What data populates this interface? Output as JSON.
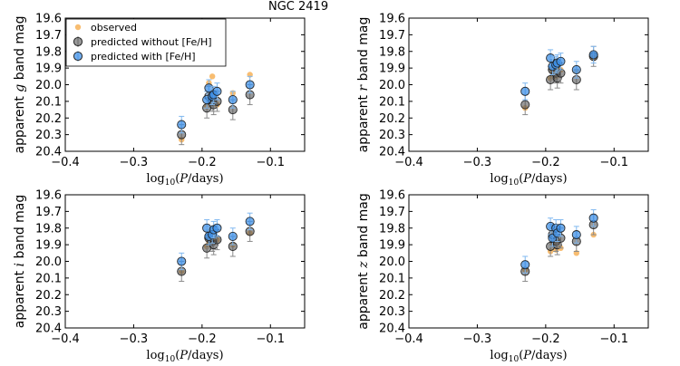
{
  "figure_title": "NGC 2419",
  "legend": {
    "entries": [
      {
        "label": "observed",
        "color": "#f5a742"
      },
      {
        "label": "predicted without [Fe/H]",
        "color": "#555555"
      },
      {
        "label": "predicted with [Fe/H]",
        "color": "#3a8ee6"
      }
    ]
  },
  "colors": {
    "observed": "#f5a742",
    "without": "#555555",
    "without_err": "#8a8a8a",
    "with": "#3a8ee6",
    "with_err": "#80b8f0"
  },
  "chart_data": [
    {
      "type": "scatter",
      "title": "NGC 2419",
      "xlabel": "log10(P/days)",
      "ylabel": "apparent g band mag",
      "ylabel_parts": {
        "pre": "apparent ",
        "band": "g",
        "post": " band mag"
      },
      "xlim": [
        -0.4,
        -0.05
      ],
      "ylim": [
        20.4,
        19.6
      ],
      "xticks": [
        -0.4,
        -0.3,
        -0.2,
        -0.1
      ],
      "xtick_labels": [
        "−0.4",
        "−0.3",
        "−0.2",
        "−0.1"
      ],
      "yticks": [
        19.6,
        19.7,
        19.8,
        19.9,
        20.0,
        20.1,
        20.2,
        20.3,
        20.4
      ],
      "ytick_labels": [
        "19.6",
        "19.7",
        "19.8",
        "19.9",
        "20.0",
        "20.1",
        "20.2",
        "20.3",
        "20.4"
      ],
      "legend": true,
      "series": [
        {
          "name": "observed",
          "x": [
            -0.23,
            -0.193,
            -0.19,
            -0.185,
            -0.183,
            -0.178,
            -0.155,
            -0.13
          ],
          "y": [
            20.33,
            20.13,
            19.99,
            19.95,
            20.08,
            20.12,
            20.05,
            19.94
          ]
        },
        {
          "name": "predicted without [Fe/H]",
          "x": [
            -0.23,
            -0.193,
            -0.19,
            -0.185,
            -0.183,
            -0.178,
            -0.155,
            -0.13
          ],
          "y": [
            20.3,
            20.14,
            20.07,
            20.1,
            20.12,
            20.1,
            20.15,
            20.06
          ],
          "err": [
            0.06,
            0.06,
            0.06,
            0.06,
            0.06,
            0.06,
            0.06,
            0.06
          ]
        },
        {
          "name": "predicted with [Fe/H]",
          "x": [
            -0.23,
            -0.193,
            -0.19,
            -0.185,
            -0.183,
            -0.178,
            -0.155,
            -0.13
          ],
          "y": [
            20.24,
            20.09,
            20.02,
            20.07,
            20.06,
            20.04,
            20.09,
            20.0
          ],
          "err": [
            0.05,
            0.05,
            0.05,
            0.05,
            0.05,
            0.05,
            0.05,
            0.05
          ]
        }
      ]
    },
    {
      "type": "scatter",
      "xlabel": "log10(P/days)",
      "ylabel": "apparent r band mag",
      "ylabel_parts": {
        "pre": "apparent ",
        "band": "r",
        "post": " band mag"
      },
      "xlim": [
        -0.4,
        -0.05
      ],
      "ylim": [
        20.4,
        19.6
      ],
      "xticks": [
        -0.4,
        -0.3,
        -0.2,
        -0.1
      ],
      "xtick_labels": [
        "−0.4",
        "−0.3",
        "−0.2",
        "−0.1"
      ],
      "yticks": [
        19.6,
        19.7,
        19.8,
        19.9,
        20.0,
        20.1,
        20.2,
        20.3,
        20.4
      ],
      "ytick_labels": [
        "19.6",
        "19.7",
        "19.8",
        "19.9",
        "20.0",
        "20.1",
        "20.2",
        "20.3",
        "20.4"
      ],
      "legend": false,
      "series": [
        {
          "name": "observed",
          "x": [
            -0.23,
            -0.193,
            -0.19,
            -0.185,
            -0.183,
            -0.178,
            -0.155,
            -0.13
          ],
          "y": [
            20.14,
            19.96,
            19.92,
            19.95,
            19.92,
            19.91,
            19.92,
            19.84
          ]
        },
        {
          "name": "predicted without [Fe/H]",
          "x": [
            -0.23,
            -0.193,
            -0.19,
            -0.185,
            -0.183,
            -0.178,
            -0.155,
            -0.13
          ],
          "y": [
            20.12,
            19.97,
            19.91,
            19.93,
            19.96,
            19.93,
            19.97,
            19.83
          ],
          "err": [
            0.06,
            0.06,
            0.06,
            0.06,
            0.06,
            0.06,
            0.06,
            0.06
          ]
        },
        {
          "name": "predicted with [Fe/H]",
          "x": [
            -0.23,
            -0.193,
            -0.19,
            -0.185,
            -0.183,
            -0.178,
            -0.155,
            -0.13
          ],
          "y": [
            20.04,
            19.84,
            19.89,
            19.88,
            19.87,
            19.86,
            19.91,
            19.82
          ],
          "err": [
            0.05,
            0.05,
            0.05,
            0.05,
            0.05,
            0.05,
            0.05,
            0.05
          ]
        }
      ]
    },
    {
      "type": "scatter",
      "xlabel": "log10(P/days)",
      "ylabel": "apparent i band mag",
      "ylabel_parts": {
        "pre": "apparent ",
        "band": "i",
        "post": " band mag"
      },
      "xlim": [
        -0.4,
        -0.05
      ],
      "ylim": [
        20.4,
        19.6
      ],
      "xticks": [
        -0.4,
        -0.3,
        -0.2,
        -0.1
      ],
      "xtick_labels": [
        "−0.4",
        "−0.3",
        "−0.2",
        "−0.1"
      ],
      "yticks": [
        19.6,
        19.7,
        19.8,
        19.9,
        20.0,
        20.1,
        20.2,
        20.3,
        20.4
      ],
      "ytick_labels": [
        "19.6",
        "19.7",
        "19.8",
        "19.9",
        "20.0",
        "20.1",
        "20.2",
        "20.3",
        "20.4"
      ],
      "legend": false,
      "series": [
        {
          "name": "observed",
          "x": [
            -0.23,
            -0.193,
            -0.19,
            -0.185,
            -0.183,
            -0.178,
            -0.155,
            -0.13
          ],
          "y": [
            20.06,
            19.91,
            19.89,
            19.88,
            19.86,
            19.87,
            19.9,
            19.83
          ]
        },
        {
          "name": "predicted without [Fe/H]",
          "x": [
            -0.23,
            -0.193,
            -0.19,
            -0.185,
            -0.183,
            -0.178,
            -0.155,
            -0.13
          ],
          "y": [
            20.06,
            19.92,
            19.86,
            19.88,
            19.9,
            19.87,
            19.91,
            19.82
          ],
          "err": [
            0.06,
            0.06,
            0.06,
            0.06,
            0.06,
            0.06,
            0.06,
            0.06
          ]
        },
        {
          "name": "predicted with [Fe/H]",
          "x": [
            -0.23,
            -0.193,
            -0.19,
            -0.185,
            -0.183,
            -0.178,
            -0.155,
            -0.13
          ],
          "y": [
            20.0,
            19.8,
            19.85,
            19.84,
            19.81,
            19.8,
            19.85,
            19.76
          ],
          "err": [
            0.05,
            0.05,
            0.05,
            0.05,
            0.05,
            0.05,
            0.05,
            0.05
          ]
        }
      ]
    },
    {
      "type": "scatter",
      "xlabel": "log10(P/days)",
      "ylabel": "apparent z band mag",
      "ylabel_parts": {
        "pre": "apparent ",
        "band": "z",
        "post": " band mag"
      },
      "xlim": [
        -0.4,
        -0.05
      ],
      "ylim": [
        20.4,
        19.6
      ],
      "xticks": [
        -0.4,
        -0.3,
        -0.2,
        -0.1
      ],
      "xtick_labels": [
        "−0.4",
        "−0.3",
        "−0.2",
        "−0.1"
      ],
      "yticks": [
        19.6,
        19.7,
        19.8,
        19.9,
        20.0,
        20.1,
        20.2,
        20.3,
        20.4
      ],
      "ytick_labels": [
        "19.6",
        "19.7",
        "19.8",
        "19.9",
        "20.0",
        "20.1",
        "20.2",
        "20.3",
        "20.4"
      ],
      "legend": false,
      "series": [
        {
          "name": "observed",
          "x": [
            -0.23,
            -0.193,
            -0.19,
            -0.185,
            -0.183,
            -0.178,
            -0.155,
            -0.13
          ],
          "y": [
            20.05,
            19.94,
            19.9,
            19.93,
            19.88,
            19.92,
            19.95,
            19.84
          ]
        },
        {
          "name": "predicted without [Fe/H]",
          "x": [
            -0.23,
            -0.193,
            -0.19,
            -0.185,
            -0.183,
            -0.178,
            -0.155,
            -0.13
          ],
          "y": [
            20.06,
            19.91,
            19.84,
            19.88,
            19.9,
            19.86,
            19.88,
            19.78
          ],
          "err": [
            0.06,
            0.06,
            0.06,
            0.06,
            0.06,
            0.06,
            0.06,
            0.06
          ]
        },
        {
          "name": "predicted with [Fe/H]",
          "x": [
            -0.23,
            -0.193,
            -0.19,
            -0.185,
            -0.183,
            -0.178,
            -0.155,
            -0.13
          ],
          "y": [
            20.02,
            19.79,
            19.86,
            19.8,
            19.83,
            19.8,
            19.84,
            19.74
          ],
          "err": [
            0.05,
            0.05,
            0.05,
            0.05,
            0.05,
            0.05,
            0.05,
            0.05
          ]
        }
      ]
    }
  ]
}
